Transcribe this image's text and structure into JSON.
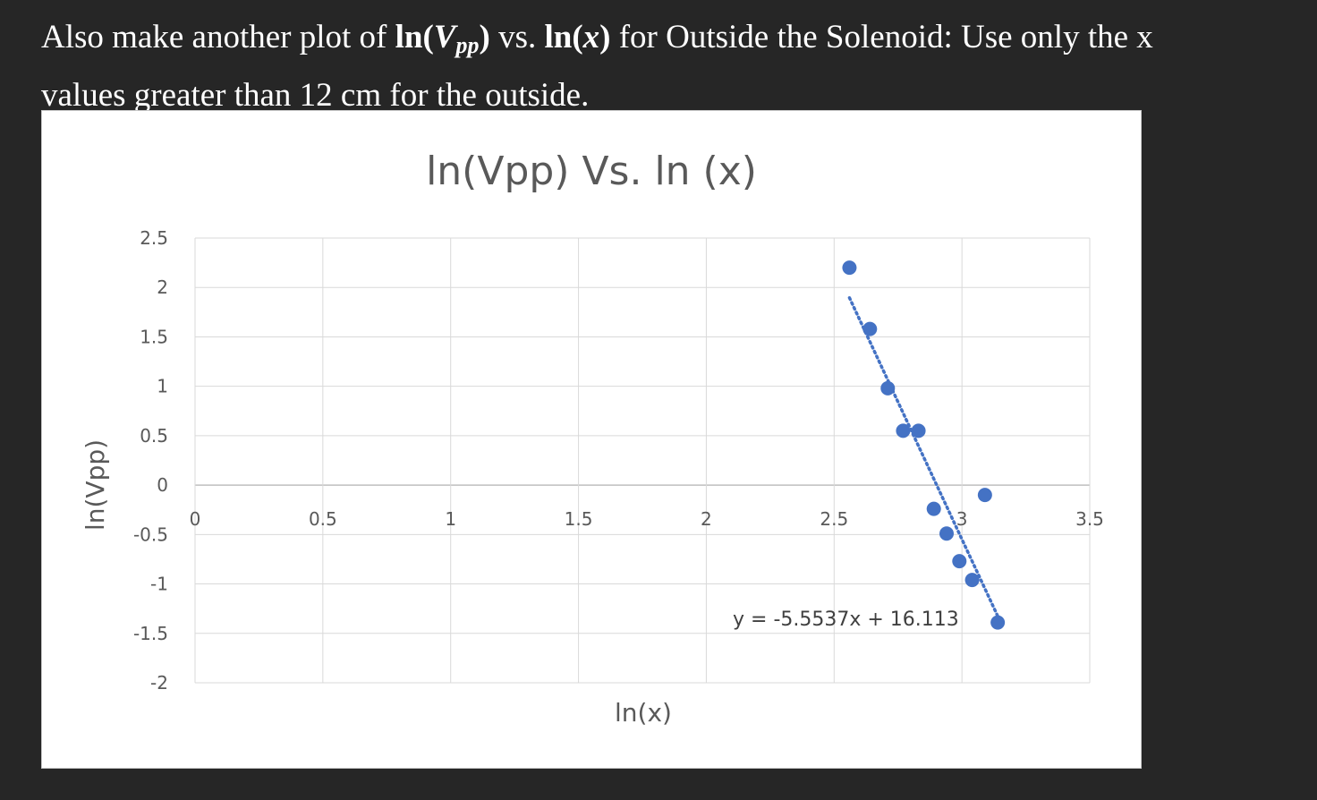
{
  "instructions": {
    "line1_pre": "Also make another plot of ",
    "math_ln1": "ln(",
    "math_v": "V",
    "math_sub": "pp",
    "math_close1": ")",
    "vs": " vs. ",
    "math_ln2": "ln(",
    "math_x": "x",
    "math_close2": ")",
    "line1_post": "  for Outside the Solenoid: Use only the x",
    "line2": "values greater than 12 cm for the outside."
  },
  "chart_data": {
    "type": "scatter",
    "title": "ln(Vpp) Vs. ln (x)",
    "xlabel": "ln(x)",
    "ylabel": "ln(Vpp)",
    "xlim": [
      0,
      3.5
    ],
    "ylim": [
      -2,
      2.5
    ],
    "x_ticks": [
      0,
      0.5,
      1,
      1.5,
      2,
      2.5,
      3,
      3.5
    ],
    "x_tick_labels": [
      "0",
      "0.5",
      "1",
      "1.5",
      "2",
      "2.5",
      "3",
      "3.5"
    ],
    "y_ticks": [
      2.5,
      2,
      1.5,
      1,
      0.5,
      0,
      -0.5,
      -1,
      -1.5,
      -2
    ],
    "y_tick_labels": [
      "2.5",
      "2",
      "1.5",
      "1",
      "0.5",
      "0",
      "-0.5",
      "-1",
      "-1.5",
      "-2"
    ],
    "grid": true,
    "series": [
      {
        "color": "#4472c4",
        "x": [
          2.56,
          2.64,
          2.71,
          2.77,
          2.83,
          2.89,
          2.94,
          2.99,
          3.04,
          3.09,
          3.14
        ],
        "y": [
          2.2,
          1.58,
          0.98,
          0.55,
          0.55,
          -0.24,
          -0.49,
          -0.77,
          -0.96,
          -0.1,
          -1.39
        ]
      }
    ],
    "trendline": {
      "type": "linear",
      "slope": -5.5537,
      "intercept": 16.113,
      "x_range": [
        2.56,
        3.14
      ],
      "style": "dotted",
      "color": "#4472c4",
      "equation_label": "y = -5.5537x + 16.113"
    }
  }
}
